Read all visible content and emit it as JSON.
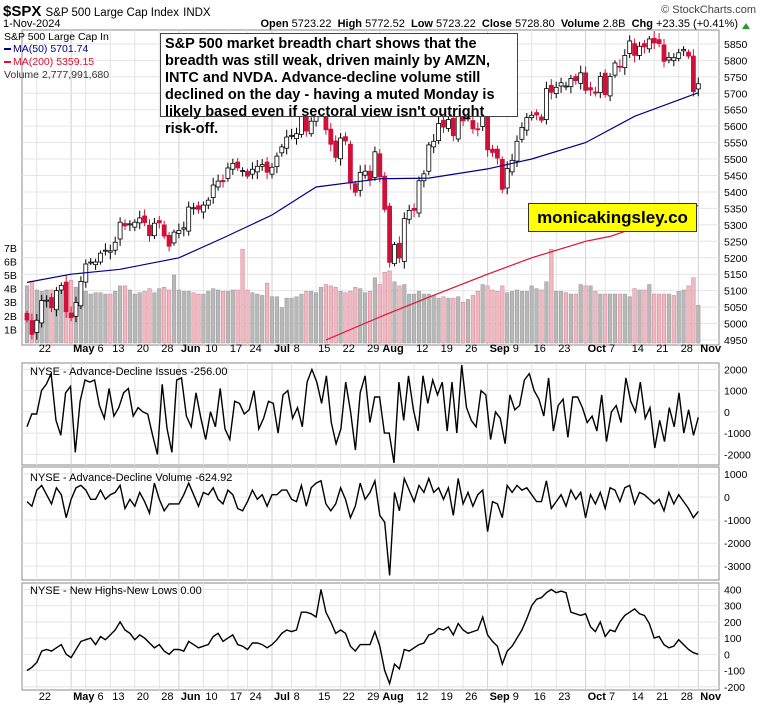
{
  "header": {
    "symbol": "$SPX",
    "name": "S&P 500 Large Cap Index",
    "exchange": "INDX",
    "date": "1-Nov-2024",
    "open_label": "Open",
    "open": "5723.22",
    "high_label": "High",
    "high": "5772.52",
    "low_label": "Low",
    "low": "5723.22",
    "close_label": "Close",
    "close": "5728.80",
    "volume_label": "Volume",
    "volume": "2.8B",
    "chg_label": "Chg",
    "chg": "+23.35 (+0.41%)",
    "credit": "© StockCharts.com"
  },
  "annotation": "S&P 500 market breadth chart shows that the breadth was still weak, driven mainly by AMZN, INTC and NVDA. Advance-decline volume still declined on the day - having a muted Monday is likely based even if sectoral view isn't outright risk-off.",
  "watermark": "monicakingsley.co",
  "colors": {
    "up": "#ffffff",
    "down": "#d01038",
    "ma50": "#00008b",
    "ma200": "#e0102e",
    "vol_up": "#b8b8b8",
    "vol_down": "#f0b8c0",
    "grid": "#e4e4e4"
  },
  "chart_data": [
    {
      "type": "candlestick",
      "title": "S&P 500 Large Cap In",
      "legend": [
        {
          "name": "MA(50)",
          "value": "5701.74"
        },
        {
          "name": "MA(200)",
          "value": "5359.15"
        },
        {
          "name": "Volume",
          "value": "2,777,991,680"
        }
      ],
      "start_date": "2024-04-18",
      "end_date": "2024-11-01",
      "ylim": [
        4950,
        5850
      ],
      "yticks": [
        "5850",
        "5800",
        "5750",
        "5700",
        "5650",
        "5600",
        "5550",
        "5500",
        "5450",
        "5400",
        "5350",
        "5300",
        "5250",
        "5200",
        "5150",
        "5100",
        "5050",
        "5000",
        "4950"
      ],
      "volume_ticks": [
        "7B",
        "6B",
        "5B",
        "4B",
        "3B",
        "2B",
        "1B"
      ],
      "closes": [
        5011,
        4967,
        5010,
        5070,
        5071,
        5048,
        5100,
        5116,
        5036,
        5018,
        5064,
        5128,
        5181,
        5187,
        5187,
        5214,
        5223,
        5221,
        5247,
        5308,
        5297,
        5303,
        5308,
        5321,
        5307,
        5267,
        5305,
        5306,
        5266,
        5235,
        5278,
        5283,
        5291,
        5354,
        5352,
        5347,
        5360,
        5375,
        5421,
        5433,
        5431,
        5473,
        5487,
        5473,
        5465,
        5448,
        5469,
        5478,
        5483,
        5460,
        5475,
        5509,
        5537,
        5567,
        5572,
        5577,
        5633,
        5585,
        5615,
        5631,
        5667,
        5589,
        5545,
        5505,
        5564,
        5555,
        5427,
        5399,
        5459,
        5463,
        5436,
        5522,
        5446,
        5347,
        5186,
        5240,
        5199,
        5319,
        5344,
        5344,
        5434,
        5455,
        5543,
        5554,
        5608,
        5597,
        5620,
        5571,
        5634,
        5616,
        5625,
        5592,
        5591,
        5648,
        5528,
        5520,
        5503,
        5408,
        5471,
        5496,
        5554,
        5596,
        5626,
        5633,
        5634,
        5618,
        5714,
        5703,
        5718,
        5732,
        5722,
        5745,
        5738,
        5762,
        5709,
        5710,
        5700,
        5751,
        5696,
        5751,
        5792,
        5780,
        5815,
        5859,
        5815,
        5843,
        5841,
        5865,
        5853,
        5851,
        5797,
        5809,
        5808,
        5823,
        5833,
        5813,
        5705,
        5728.8
      ],
      "volume_billions": [
        4.2,
        4.5,
        3.9,
        3.8,
        3.9,
        3.9,
        3.6,
        3.9,
        4.3,
        4.6,
        4.1,
        4.0,
        3.8,
        3.6,
        3.7,
        3.7,
        3.6,
        3.6,
        3.8,
        4.2,
        4.2,
        3.9,
        3.6,
        3.7,
        3.8,
        4.0,
        3.7,
        4.0,
        4.1,
        3.9,
        5.0,
        3.9,
        3.8,
        3.8,
        3.7,
        3.6,
        3.6,
        3.8,
        4.0,
        3.9,
        3.8,
        3.8,
        3.9,
        3.9,
        6.9,
        3.9,
        3.7,
        3.6,
        3.5,
        4.4,
        3.4,
        3.4,
        2.6,
        3.3,
        3.3,
        3.4,
        3.6,
        3.8,
        3.8,
        3.7,
        4.1,
        4.3,
        4.2,
        4.1,
        3.8,
        3.7,
        3.8,
        4.1,
        4.0,
        3.7,
        3.8,
        4.8,
        4.3,
        5.2,
        5.3,
        4.5,
        4.2,
        4.3,
        3.6,
        3.6,
        3.8,
        3.6,
        3.6,
        3.5,
        3.3,
        3.4,
        3.3,
        3.3,
        3.4,
        3.0,
        3.2,
        3.5,
        3.8,
        4.3,
        4.2,
        3.9,
        3.8,
        4.2,
        3.7,
        3.8,
        3.9,
        3.8,
        3.8,
        4.2,
        4.0,
        3.9,
        4.5,
        6.9,
        3.8,
        3.8,
        3.7,
        3.6,
        3.6,
        4.3,
        4.2,
        4.2,
        3.8,
        3.6,
        3.6,
        3.6,
        3.6,
        3.6,
        3.6,
        3.4,
        4.0,
        3.9,
        3.9,
        4.3,
        3.6,
        3.6,
        3.6,
        3.6,
        3.5,
        3.8,
        3.9,
        4.2,
        4.8,
        2.78
      ],
      "ma50": [
        [
          "2024-04-18",
          5125
        ],
        [
          "2024-05-01",
          5150
        ],
        [
          "2024-05-15",
          5165
        ],
        [
          "2024-06-03",
          5200
        ],
        [
          "2024-06-14",
          5260
        ],
        [
          "2024-07-01",
          5330
        ],
        [
          "2024-07-15",
          5415
        ],
        [
          "2024-08-01",
          5440
        ],
        [
          "2024-08-15",
          5442
        ],
        [
          "2024-09-03",
          5470
        ],
        [
          "2024-09-16",
          5500
        ],
        [
          "2024-10-01",
          5550
        ],
        [
          "2024-10-15",
          5630
        ],
        [
          "2024-11-01",
          5701.74
        ]
      ],
      "ma200": [
        [
          "2024-07-17",
          4950
        ],
        [
          "2024-08-01",
          5020
        ],
        [
          "2024-08-15",
          5080
        ],
        [
          "2024-09-03",
          5150
        ],
        [
          "2024-09-16",
          5200
        ],
        [
          "2024-10-01",
          5250
        ],
        [
          "2024-10-08",
          5265
        ],
        [
          "2024-10-15",
          5290
        ],
        [
          "2024-11-01",
          5359.15
        ]
      ]
    },
    {
      "type": "line",
      "title": "NYSE - Advance-Decline Issues -256.00",
      "ylim": [
        -2500,
        2300
      ],
      "yticks": [
        "2000",
        "1000",
        "0",
        "-1000",
        "-2000"
      ],
      "values": [
        -700,
        -100,
        -100,
        1000,
        1300,
        1800,
        -400,
        -1100,
        900,
        1200,
        -1900,
        500,
        1500,
        1400,
        1500,
        300,
        -300,
        1100,
        -200,
        200,
        900,
        1100,
        -200,
        200,
        0,
        -100,
        -1100,
        -2000,
        1300,
        -800,
        -1900,
        1500,
        1600,
        -200,
        -700,
        900,
        -300,
        -1300,
        0,
        -700,
        1100,
        -800,
        -1300,
        500,
        400,
        -100,
        100,
        1000,
        -800,
        -300,
        500,
        400,
        -1000,
        800,
        1000,
        -300,
        200,
        -700,
        1400,
        2000,
        1400,
        400,
        1700,
        -500,
        -1500,
        -800,
        1400,
        0,
        -1800,
        900,
        1700,
        -500,
        700,
        700,
        -1000,
        -1000,
        -2400,
        1400,
        -400,
        1700,
        100,
        -900,
        1700,
        400,
        1500,
        800,
        1400,
        -900,
        1400,
        -1000,
        2200,
        200,
        -400,
        -700,
        1000,
        800,
        -1300,
        0,
        -300,
        -1500,
        800,
        100,
        300,
        1500,
        1800,
        1000,
        600,
        -200,
        1600,
        -900,
        300,
        600,
        -1200,
        700,
        700,
        200,
        -500,
        -200,
        -900,
        800,
        -1400,
        0,
        300,
        -500,
        1600,
        500,
        0,
        1400,
        -300,
        200,
        -1700,
        -400,
        -1400,
        200,
        -700,
        900,
        -1000,
        100,
        -1100,
        -256
      ]
    },
    {
      "type": "line",
      "title": "NYSE - Advance-Decline Volume -624.92",
      "ylim": [
        -3600,
        1300
      ],
      "yticks": [
        "1000",
        "0",
        "-1000",
        "-2000",
        "-3000"
      ],
      "values": [
        -200,
        -400,
        300,
        500,
        100,
        -300,
        400,
        100,
        -900,
        -100,
        400,
        500,
        300,
        -100,
        -100,
        300,
        -100,
        100,
        200,
        500,
        -500,
        -100,
        -400,
        200,
        -200,
        -700,
        600,
        -100,
        -600,
        -300,
        -300,
        -300,
        100,
        600,
        100,
        -400,
        200,
        100,
        400,
        -100,
        -300,
        300,
        100,
        -500,
        -600,
        -200,
        300,
        -100,
        100,
        -400,
        100,
        100,
        300,
        300,
        -100,
        -200,
        500,
        -400,
        400,
        600,
        700,
        -300,
        -600,
        -300,
        400,
        -100,
        -900,
        -400,
        600,
        -100,
        200,
        700,
        -800,
        -1100,
        -3400,
        200,
        -600,
        800,
        300,
        -200,
        500,
        200,
        800,
        200,
        400,
        -100,
        400,
        -800,
        800,
        -300,
        200,
        -400,
        100,
        300,
        -1500,
        -200,
        -300,
        -900,
        500,
        200,
        500,
        300,
        400,
        100,
        -200,
        -200,
        700,
        -500,
        -200,
        100,
        -400,
        300,
        -100,
        200,
        -900,
        100,
        -300,
        200,
        -500,
        400,
        300,
        -200,
        400,
        500,
        -300,
        200,
        100,
        -100,
        -300,
        -100,
        -600,
        200,
        -300,
        100,
        -200,
        -500,
        -900,
        -624.92
      ]
    },
    {
      "type": "line",
      "title": "NYSE - New Highs-New Lows 0.00",
      "ylim": [
        -220,
        440
      ],
      "yticks": [
        "400",
        "300",
        "200",
        "100",
        "0",
        "-100",
        "-200"
      ],
      "values": [
        -100,
        -80,
        -50,
        20,
        30,
        20,
        40,
        60,
        0,
        -20,
        30,
        80,
        90,
        100,
        60,
        110,
        90,
        120,
        150,
        200,
        150,
        130,
        90,
        120,
        100,
        70,
        40,
        60,
        20,
        0,
        30,
        30,
        20,
        80,
        60,
        40,
        50,
        60,
        110,
        130,
        80,
        100,
        120,
        60,
        50,
        30,
        70,
        70,
        60,
        40,
        60,
        90,
        130,
        150,
        140,
        150,
        260,
        260,
        250,
        230,
        400,
        260,
        200,
        130,
        150,
        130,
        50,
        20,
        60,
        60,
        60,
        140,
        50,
        -100,
        -180,
        -60,
        -90,
        30,
        20,
        40,
        60,
        70,
        120,
        130,
        160,
        150,
        170,
        120,
        190,
        150,
        130,
        140,
        150,
        230,
        120,
        80,
        50,
        -60,
        20,
        50,
        100,
        150,
        220,
        300,
        340,
        350,
        380,
        400,
        380,
        390,
        380,
        260,
        250,
        240,
        250,
        170,
        140,
        200,
        110,
        150,
        140,
        200,
        240,
        260,
        280,
        250,
        240,
        190,
        100,
        110,
        60,
        40,
        50,
        90,
        60,
        30,
        10,
        0
      ]
    }
  ],
  "xaxis": [
    {
      "label": "22",
      "date": "2024-04-22",
      "bold": false
    },
    {
      "label": "May",
      "date": "2024-05-01",
      "bold": true
    },
    {
      "label": "6",
      "date": "2024-05-06",
      "bold": false
    },
    {
      "label": "13",
      "date": "2024-05-13",
      "bold": false
    },
    {
      "label": "20",
      "date": "2024-05-20",
      "bold": false
    },
    {
      "label": "28",
      "date": "2024-05-28",
      "bold": false
    },
    {
      "label": "Jun",
      "date": "2024-06-03",
      "bold": true
    },
    {
      "label": "10",
      "date": "2024-06-10",
      "bold": false
    },
    {
      "label": "17",
      "date": "2024-06-17",
      "bold": false
    },
    {
      "label": "24",
      "date": "2024-06-24",
      "bold": false
    },
    {
      "label": "Jul",
      "date": "2024-07-01",
      "bold": true
    },
    {
      "label": "8",
      "date": "2024-07-08",
      "bold": false
    },
    {
      "label": "15",
      "date": "2024-07-15",
      "bold": false
    },
    {
      "label": "22",
      "date": "2024-07-22",
      "bold": false
    },
    {
      "label": "29",
      "date": "2024-07-29",
      "bold": false
    },
    {
      "label": "Aug",
      "date": "2024-08-01",
      "bold": true
    },
    {
      "label": "12",
      "date": "2024-08-12",
      "bold": false
    },
    {
      "label": "19",
      "date": "2024-08-19",
      "bold": false
    },
    {
      "label": "26",
      "date": "2024-08-26",
      "bold": false
    },
    {
      "label": "Sep",
      "date": "2024-09-03",
      "bold": true
    },
    {
      "label": "9",
      "date": "2024-09-09",
      "bold": false
    },
    {
      "label": "16",
      "date": "2024-09-16",
      "bold": false
    },
    {
      "label": "23",
      "date": "2024-09-23",
      "bold": false
    },
    {
      "label": "Oct",
      "date": "2024-10-01",
      "bold": true
    },
    {
      "label": "7",
      "date": "2024-10-07",
      "bold": false
    },
    {
      "label": "14",
      "date": "2024-10-14",
      "bold": false
    },
    {
      "label": "21",
      "date": "2024-10-21",
      "bold": false
    },
    {
      "label": "28",
      "date": "2024-10-28",
      "bold": false
    },
    {
      "label": "Nov",
      "date": "2024-11-01",
      "bold": true
    }
  ]
}
